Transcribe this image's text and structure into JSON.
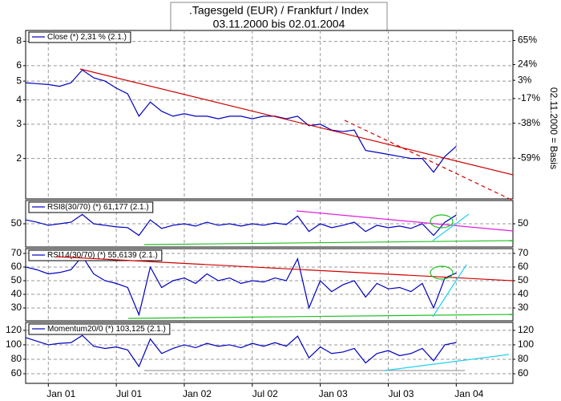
{
  "chart_data": [
    {
      "type": "line",
      "title": ".Tagesgeld (EUR) / Frankfurt / Index",
      "subtitle": "03.11.2000 bis 02.01.2004",
      "y2_label": "02.11.2000 = Basis",
      "log_scale": true,
      "grid": true,
      "ylim": [
        1.24,
        9.1
      ],
      "yticks": [
        2,
        3,
        4,
        5,
        6,
        8
      ],
      "y2lim": [
        -74.69,
        85.71
      ],
      "y2ticks": [
        {
          "value": 65,
          "label": "65%"
        },
        {
          "value": 24,
          "label": "24%"
        },
        {
          "value": 3,
          "label": "3%"
        },
        {
          "value": -17,
          "label": "-17%"
        },
        {
          "value": -38,
          "label": "-38%"
        },
        {
          "value": -59,
          "label": "-59%"
        }
      ],
      "series": [
        {
          "name": "Close (*) 2,31 % (2.1.)",
          "color": "#0000c0",
          "values": [
            4.9,
            4.85,
            4.8,
            4.7,
            4.9,
            5.7,
            5.2,
            5.0,
            4.6,
            4.3,
            3.3,
            3.9,
            3.5,
            3.3,
            3.4,
            3.3,
            3.3,
            3.2,
            3.3,
            3.3,
            3.2,
            3.3,
            3.3,
            3.2,
            3.3,
            2.95,
            3.0,
            2.8,
            2.75,
            2.8,
            2.2,
            2.15,
            2.1,
            2.05,
            2.0,
            2.0,
            1.7,
            2.05,
            2.31,
            null,
            null,
            null,
            null
          ]
        }
      ]
    },
    {
      "type": "line",
      "grid": true,
      "ylim": [
        20,
        80
      ],
      "yticks": [
        50
      ],
      "y2ticks": [
        50
      ],
      "series": [
        {
          "name": "RSI8(30/70) (*) 61,177 (2.1.)",
          "color": "#0000c0",
          "values": [
            55,
            52,
            48,
            50,
            52,
            62,
            50,
            48,
            46,
            45,
            35,
            55,
            44,
            48,
            50,
            47,
            52,
            48,
            50,
            47,
            50,
            48,
            51,
            49,
            60,
            40,
            50,
            45,
            48,
            52,
            40,
            48,
            45,
            47,
            44,
            50,
            35,
            52,
            61.177,
            null,
            null,
            null,
            null
          ]
        }
      ]
    },
    {
      "type": "line",
      "grid": true,
      "ylim": [
        20.6,
        73.5
      ],
      "yticks": [
        30,
        40,
        50,
        60,
        70
      ],
      "y2ticks": [
        30,
        40,
        50,
        60,
        70
      ],
      "series": [
        {
          "name": "RSI14(30/70) (*) 55,6139 (2.1.)",
          "color": "#0000c0",
          "values": [
            60,
            58,
            55,
            56,
            58,
            68,
            55,
            50,
            48,
            45,
            25,
            60,
            45,
            50,
            52,
            48,
            55,
            50,
            52,
            48,
            50,
            49,
            52,
            50,
            66,
            30,
            50,
            42,
            47,
            50,
            38,
            48,
            44,
            45,
            42,
            48,
            30,
            52,
            55.6139,
            null,
            null,
            null,
            null
          ]
        }
      ]
    },
    {
      "type": "line",
      "grid": true,
      "ylim": [
        46.7,
        131
      ],
      "yticks": [
        60,
        80,
        100,
        120
      ],
      "y2ticks": [
        60,
        80,
        100,
        120
      ],
      "categories": [
        null,
        null,
        "Jan 01",
        null,
        null,
        null,
        null,
        null,
        "Jul 01",
        null,
        null,
        null,
        null,
        null,
        "Jan 02",
        null,
        null,
        null,
        null,
        null,
        "Jul 02",
        null,
        null,
        null,
        null,
        null,
        "Jan 03",
        null,
        null,
        null,
        null,
        null,
        "Jul 03",
        null,
        null,
        null,
        null,
        null,
        "Jan 04",
        null,
        null,
        null,
        null
      ],
      "series": [
        {
          "name": "Momentum20/0 (*) 103,125 (2.1.)",
          "color": "#0000c0",
          "values": [
            110,
            105,
            100,
            102,
            103,
            113,
            98,
            95,
            97,
            93,
            70,
            108,
            88,
            95,
            100,
            96,
            102,
            98,
            100,
            96,
            102,
            98,
            103,
            98,
            112,
            82,
            97,
            88,
            90,
            95,
            75,
            88,
            92,
            85,
            88,
            95,
            78,
            100,
            103.125,
            null,
            null,
            null,
            null
          ]
        }
      ]
    }
  ]
}
